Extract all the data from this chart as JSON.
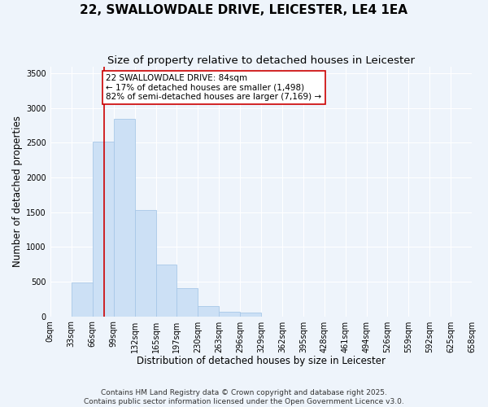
{
  "title": "22, SWALLOWDALE DRIVE, LEICESTER, LE4 1EA",
  "subtitle": "Size of property relative to detached houses in Leicester",
  "xlabel": "Distribution of detached houses by size in Leicester",
  "ylabel": "Number of detached properties",
  "bar_color": "#cce0f5",
  "bar_edge_color": "#a8c8e8",
  "background_color": "#eef4fb",
  "bin_edges": [
    0,
    33,
    66,
    99,
    132,
    165,
    197,
    230,
    263,
    296,
    329,
    362,
    395,
    428,
    461,
    494,
    526,
    559,
    592,
    625,
    658
  ],
  "bar_heights": [
    0,
    490,
    2520,
    2840,
    1530,
    750,
    400,
    150,
    70,
    50,
    0,
    0,
    0,
    0,
    0,
    0,
    0,
    0,
    0,
    0
  ],
  "tick_labels": [
    "0sqm",
    "33sqm",
    "66sqm",
    "99sqm",
    "132sqm",
    "165sqm",
    "197sqm",
    "230sqm",
    "263sqm",
    "296sqm",
    "329sqm",
    "362sqm",
    "395sqm",
    "428sqm",
    "461sqm",
    "494sqm",
    "526sqm",
    "559sqm",
    "592sqm",
    "625sqm",
    "658sqm"
  ],
  "vline_x": 84,
  "vline_color": "#cc0000",
  "annotation_title": "22 SWALLOWDALE DRIVE: 84sqm",
  "annotation_line1": "← 17% of detached houses are smaller (1,498)",
  "annotation_line2": "82% of semi-detached houses are larger (7,169) →",
  "annotation_box_color": "#ffffff",
  "annotation_box_edge": "#cc0000",
  "ylim": [
    0,
    3600
  ],
  "yticks": [
    0,
    500,
    1000,
    1500,
    2000,
    2500,
    3000,
    3500
  ],
  "footer_line1": "Contains HM Land Registry data © Crown copyright and database right 2025.",
  "footer_line2": "Contains public sector information licensed under the Open Government Licence v3.0.",
  "title_fontsize": 11,
  "subtitle_fontsize": 9.5,
  "axis_label_fontsize": 8.5,
  "tick_fontsize": 7,
  "annotation_fontsize": 7.5,
  "footer_fontsize": 6.5
}
